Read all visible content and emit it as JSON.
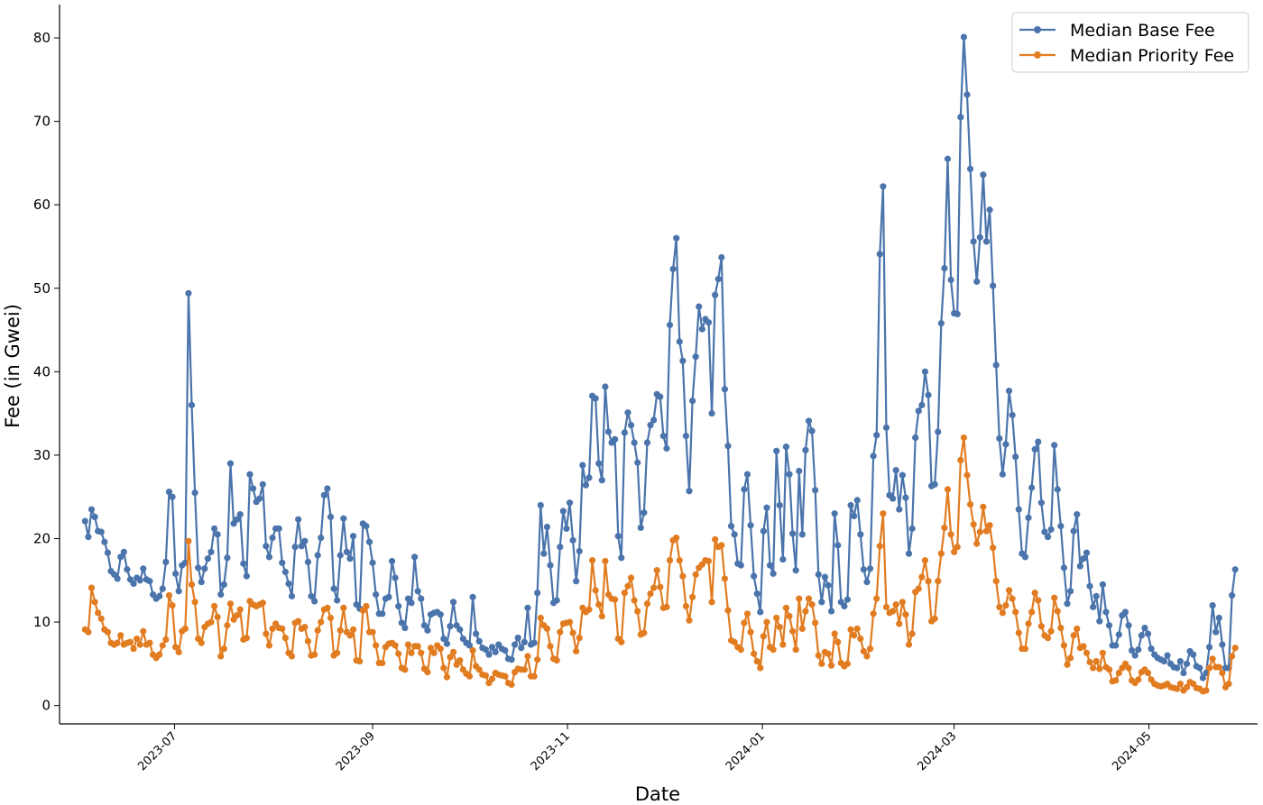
{
  "chart_data": {
    "type": "line",
    "xlabel": "Date",
    "ylabel": "Fee (in Gwei)",
    "x_range": [
      "2023-05-26",
      "2024-06-04"
    ],
    "ylim": [
      -2.2,
      84.0
    ],
    "y_ticks": [
      0,
      10,
      20,
      30,
      40,
      50,
      60,
      70,
      80
    ],
    "x_ticks": [
      "2023-07",
      "2023-09",
      "2023-11",
      "2024-01",
      "2024-03",
      "2024-05"
    ],
    "x_tick_dates": [
      "2023-07-01",
      "2023-09-01",
      "2023-11-01",
      "2024-01-01",
      "2024-03-01",
      "2024-05-01"
    ],
    "grid": false,
    "legend_position": "upper right",
    "start_date": "2023-06-03",
    "end_date": "2024-05-28",
    "series": [
      {
        "name": "Median Base Fee",
        "color": "#4a74ab",
        "values": [
          22.1,
          20.2,
          23.5,
          22.6,
          20.9,
          20.8,
          19.6,
          18.3,
          16.1,
          15.7,
          15.2,
          17.8,
          18.4,
          16.3,
          15.1,
          14.6,
          15.3,
          15.0,
          16.4,
          15.1,
          14.9,
          13.3,
          12.8,
          13.1,
          14.0,
          17.2,
          25.6,
          25.0,
          15.8,
          13.7,
          16.8,
          17.1,
          49.4,
          36.0,
          25.5,
          16.5,
          14.8,
          16.4,
          17.6,
          18.4,
          21.2,
          20.5,
          13.3,
          14.5,
          17.7,
          29.0,
          21.8,
          22.3,
          22.9,
          17.0,
          15.5,
          27.7,
          26.0,
          24.4,
          24.8,
          26.5,
          19.1,
          17.8,
          20.1,
          21.2,
          21.2,
          17.1,
          16.0,
          14.6,
          13.1,
          19.0,
          22.3,
          19.1,
          19.7,
          17.2,
          13.1,
          12.5,
          18.0,
          20.1,
          25.2,
          26.0,
          22.6,
          14.0,
          12.6,
          18.0,
          22.4,
          18.4,
          17.6,
          20.3,
          12.1,
          11.6,
          21.8,
          21.5,
          19.6,
          17.1,
          13.3,
          11.0,
          11.0,
          12.8,
          13.0,
          17.3,
          15.3,
          11.9,
          9.9,
          9.3,
          12.8,
          12.3,
          17.8,
          13.7,
          12.8,
          9.6,
          9.0,
          10.9,
          11.1,
          11.2,
          10.9,
          8.0,
          7.4,
          9.5,
          12.4,
          9.6,
          9.1,
          8.0,
          7.5,
          7.2,
          13.0,
          8.6,
          7.7,
          6.9,
          6.7,
          6.1,
          7.0,
          6.4,
          7.3,
          6.8,
          6.6,
          5.6,
          5.5,
          7.3,
          8.1,
          6.9,
          7.6,
          11.7,
          7.3,
          7.5,
          13.5,
          24.0,
          18.2,
          21.4,
          16.8,
          12.3,
          12.6,
          19.0,
          23.3,
          21.2,
          24.3,
          19.8,
          14.9,
          18.5,
          28.8,
          26.4,
          27.3,
          37.1,
          36.8,
          29.0,
          27.0,
          38.2,
          32.8,
          31.5,
          31.9,
          20.3,
          17.7,
          32.7,
          35.1,
          33.6,
          31.5,
          29.1,
          21.3,
          23.1,
          31.5,
          33.6,
          34.2,
          37.3,
          37.0,
          32.3,
          30.8,
          45.6,
          52.3,
          56.0,
          43.6,
          41.3,
          32.3,
          25.7,
          36.5,
          41.8,
          47.8,
          45.1,
          46.3,
          45.9,
          35.0,
          49.2,
          51.1,
          53.7,
          37.9,
          31.1,
          21.5,
          20.5,
          17.0,
          16.8,
          25.9,
          27.7,
          21.6,
          15.5,
          13.4,
          11.2,
          20.9,
          23.7,
          16.8,
          15.8,
          30.5,
          24.0,
          17.5,
          31.0,
          27.7,
          20.6,
          16.2,
          28.1,
          20.5,
          30.6,
          34.1,
          32.9,
          25.8,
          15.7,
          12.4,
          15.4,
          14.4,
          11.3,
          23.0,
          19.2,
          12.4,
          11.9,
          12.7,
          24.0,
          22.7,
          24.6,
          20.5,
          16.3,
          14.8,
          16.4,
          29.9,
          32.4,
          54.1,
          62.2,
          33.3,
          25.2,
          24.8,
          28.2,
          23.5,
          27.6,
          24.9,
          18.2,
          21.2,
          32.1,
          35.3,
          36.0,
          40.0,
          37.2,
          26.3,
          26.5,
          32.8,
          45.8,
          52.4,
          65.5,
          51.0,
          47.0,
          46.9,
          70.5,
          80.1,
          73.2,
          64.3,
          55.6,
          50.8,
          56.1,
          63.6,
          55.6,
          59.4,
          50.3,
          40.8,
          32.0,
          27.7,
          31.3,
          37.7,
          34.8,
          29.8,
          23.5,
          18.2,
          17.8,
          22.5,
          26.1,
          30.7,
          31.6,
          24.3,
          20.8,
          20.2,
          21.1,
          31.2,
          25.9,
          21.5,
          16.5,
          12.2,
          13.7,
          20.9,
          22.9,
          16.7,
          17.6,
          18.3,
          14.3,
          11.8,
          13.1,
          10.1,
          14.5,
          11.2,
          9.6,
          7.2,
          7.2,
          8.5,
          10.8,
          11.2,
          9.6,
          6.6,
          6.0,
          6.7,
          8.4,
          9.3,
          8.6,
          6.8,
          6.1,
          5.7,
          5.5,
          5.3,
          6.0,
          5.0,
          4.6,
          4.5,
          5.3,
          3.9,
          5.0,
          6.5,
          6.1,
          4.7,
          4.5,
          3.3,
          3.9,
          7.0,
          12.0,
          8.8,
          10.5,
          7.3,
          4.5,
          4.5,
          13.2,
          16.3
        ]
      },
      {
        "name": "Median Priority Fee",
        "color": "#e17c21",
        "values": [
          9.1,
          8.8,
          14.1,
          12.4,
          11.1,
          10.4,
          9.1,
          8.8,
          7.5,
          7.3,
          7.5,
          8.4,
          7.3,
          7.5,
          7.6,
          6.8,
          8.0,
          7.3,
          8.9,
          7.3,
          7.5,
          6.1,
          5.7,
          6.1,
          7.2,
          7.9,
          13.2,
          12.0,
          7.0,
          6.4,
          8.9,
          9.2,
          19.7,
          14.5,
          12.4,
          8.0,
          7.5,
          9.4,
          9.8,
          10.0,
          11.9,
          10.6,
          5.9,
          6.8,
          9.6,
          12.2,
          10.3,
          10.8,
          11.5,
          7.9,
          8.1,
          12.5,
          12.1,
          11.9,
          12.1,
          12.3,
          8.6,
          7.2,
          9.2,
          9.8,
          9.3,
          9.2,
          8.1,
          6.3,
          5.9,
          9.9,
          10.1,
          9.2,
          9.4,
          7.7,
          6.0,
          6.1,
          9.0,
          10.0,
          11.5,
          11.7,
          10.5,
          6.0,
          6.3,
          9.0,
          11.7,
          8.8,
          8.4,
          9.1,
          5.4,
          5.3,
          11.4,
          11.9,
          8.8,
          8.8,
          7.2,
          5.1,
          5.1,
          7.0,
          7.4,
          7.5,
          7.2,
          6.2,
          4.5,
          4.3,
          7.3,
          6.3,
          7.1,
          7.1,
          6.3,
          4.4,
          4.0,
          6.9,
          6.3,
          7.2,
          6.8,
          4.5,
          3.4,
          5.8,
          6.4,
          4.9,
          5.4,
          4.3,
          3.8,
          3.5,
          6.6,
          4.7,
          4.3,
          3.7,
          3.6,
          2.7,
          3.2,
          3.9,
          3.7,
          3.6,
          3.5,
          2.7,
          2.5,
          4.0,
          4.4,
          4.3,
          4.3,
          5.9,
          3.5,
          3.5,
          5.5,
          10.5,
          9.6,
          9.2,
          7.1,
          5.6,
          5.4,
          8.8,
          9.8,
          9.9,
          10.0,
          8.7,
          6.5,
          8.1,
          11.7,
          11.2,
          11.5,
          17.4,
          13.8,
          12.1,
          10.7,
          17.3,
          13.3,
          12.8,
          12.7,
          8.0,
          7.6,
          13.5,
          14.3,
          15.3,
          12.6,
          11.3,
          8.5,
          8.7,
          12.2,
          13.4,
          14.1,
          16.2,
          14.2,
          11.7,
          11.8,
          17.4,
          19.8,
          20.1,
          17.4,
          15.5,
          11.9,
          10.2,
          13.0,
          15.7,
          16.5,
          16.9,
          17.4,
          17.3,
          12.4,
          19.9,
          19.0,
          19.2,
          15.2,
          11.4,
          7.8,
          7.6,
          7.0,
          6.7,
          9.9,
          11.0,
          8.8,
          6.2,
          5.3,
          4.5,
          8.3,
          10.0,
          7.0,
          6.7,
          10.5,
          9.4,
          7.3,
          11.7,
          10.7,
          8.9,
          6.7,
          12.8,
          9.2,
          11.3,
          12.8,
          12.1,
          9.9,
          6.0,
          5.0,
          6.4,
          6.2,
          4.8,
          8.6,
          7.6,
          5.1,
          4.7,
          5.0,
          9.1,
          8.4,
          9.2,
          8.0,
          6.5,
          5.9,
          6.8,
          11.0,
          12.8,
          19.1,
          23.0,
          11.8,
          11.1,
          11.3,
          12.1,
          9.8,
          12.4,
          10.9,
          7.3,
          8.6,
          13.6,
          14.0,
          15.4,
          17.4,
          14.9,
          10.1,
          10.4,
          14.9,
          18.2,
          21.3,
          25.9,
          20.5,
          18.4,
          19.0,
          29.4,
          32.1,
          27.6,
          24.1,
          21.7,
          19.4,
          20.8,
          23.8,
          20.9,
          21.6,
          18.9,
          14.9,
          11.8,
          11.1,
          12.0,
          13.8,
          12.8,
          11.2,
          8.7,
          6.8,
          6.8,
          9.8,
          11.2,
          13.5,
          12.6,
          9.5,
          8.4,
          8.1,
          8.9,
          12.9,
          11.3,
          9.3,
          7.2,
          4.9,
          5.7,
          8.4,
          9.2,
          6.9,
          7.1,
          6.3,
          5.2,
          4.5,
          5.3,
          4.4,
          6.3,
          4.6,
          4.3,
          2.9,
          3.0,
          3.9,
          4.5,
          5.0,
          4.5,
          3.0,
          2.7,
          3.1,
          4.0,
          4.3,
          3.9,
          3.1,
          2.6,
          2.4,
          2.3,
          2.4,
          2.6,
          2.2,
          2.1,
          2.0,
          2.6,
          1.8,
          2.2,
          2.8,
          2.6,
          2.1,
          2.0,
          1.7,
          1.8,
          4.5,
          5.6,
          4.6,
          4.6,
          3.9,
          2.2,
          2.6,
          5.9,
          6.9
        ]
      }
    ]
  }
}
